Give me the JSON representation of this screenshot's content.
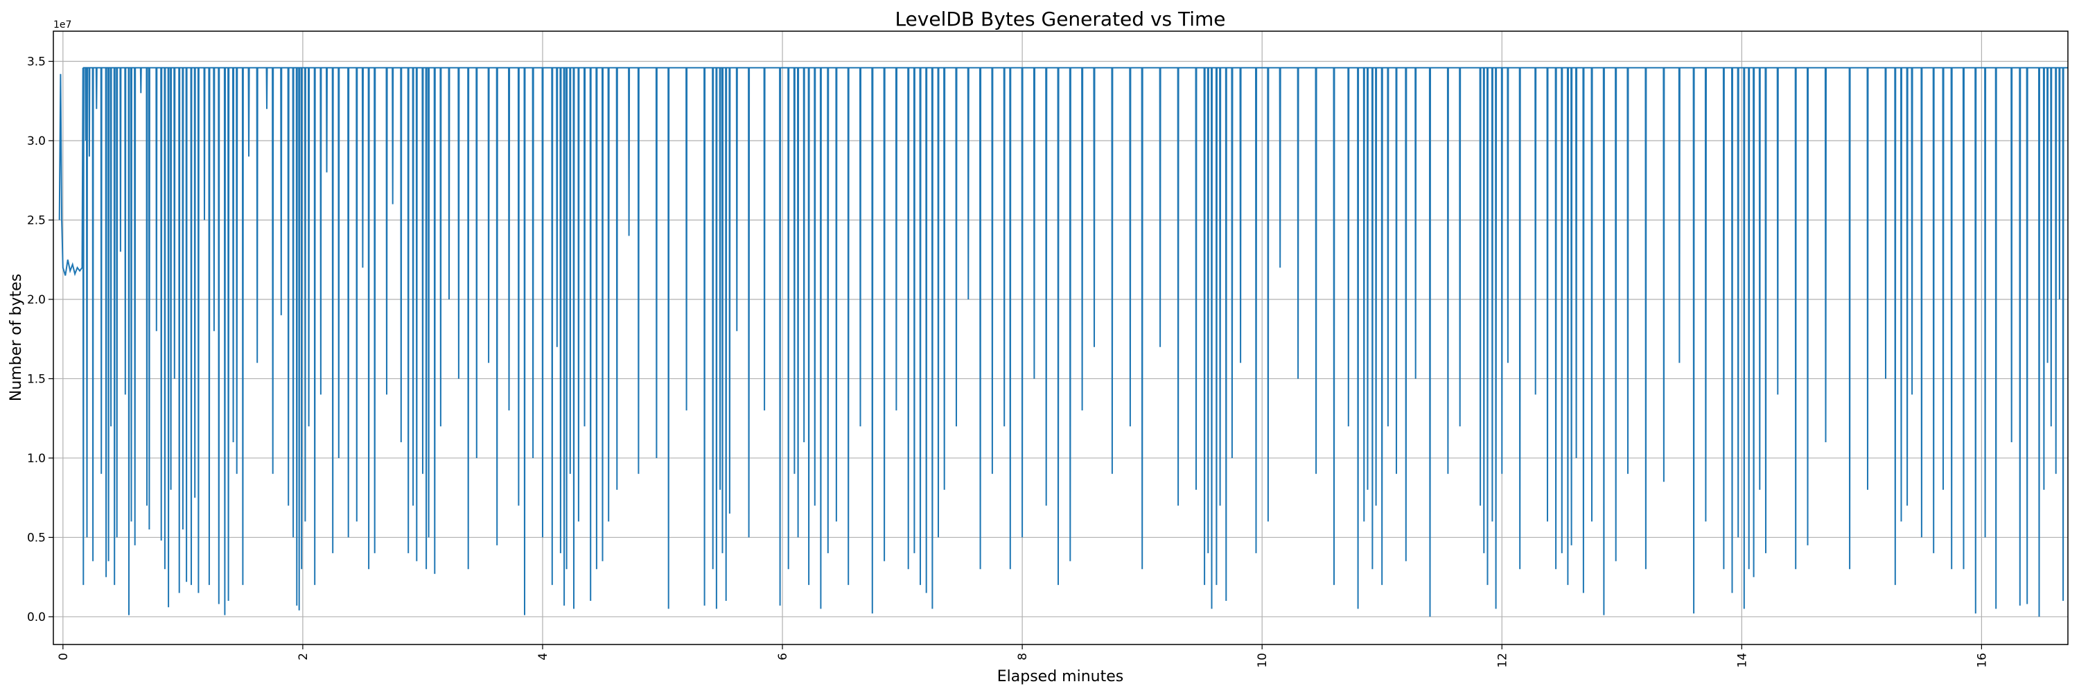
{
  "chart_data": {
    "type": "line",
    "title": "LevelDB Bytes Generated vs Time",
    "xlabel": "Elapsed minutes",
    "ylabel": "Number of bytes",
    "y_offset_text": "1e7",
    "y_unit_multiplier": 10000000,
    "xlim": [
      -0.08,
      16.72
    ],
    "ylim": [
      -0.175,
      3.69
    ],
    "xticks": [
      0,
      2,
      4,
      6,
      8,
      10,
      12,
      14,
      16
    ],
    "xtick_labels": [
      "0",
      "2",
      "4",
      "6",
      "8",
      "10",
      "12",
      "14",
      "16"
    ],
    "yticks": [
      0,
      0.5,
      1.0,
      1.5,
      2.0,
      2.5,
      3.0,
      3.5
    ],
    "ytick_labels": [
      "0.0",
      "0.5",
      "1.0",
      "1.5",
      "2.0",
      "2.5",
      "3.0",
      "3.5"
    ],
    "grid": true,
    "color": "#1f77b4",
    "series": [
      {
        "name": "bytes",
        "baseline": 3.46,
        "start_points": [
          [
            -0.03,
            2.5
          ],
          [
            -0.02,
            3.42
          ],
          [
            -0.01,
            2.5
          ],
          [
            0.0,
            2.2
          ],
          [
            0.02,
            2.15
          ],
          [
            0.04,
            2.25
          ],
          [
            0.06,
            2.18
          ],
          [
            0.08,
            2.22
          ],
          [
            0.1,
            2.16
          ],
          [
            0.12,
            2.2
          ],
          [
            0.14,
            2.18
          ],
          [
            0.16,
            2.2
          ]
        ],
        "dips": [
          [
            0.17,
            0.2
          ],
          [
            0.19,
            3.0
          ],
          [
            0.2,
            0.5
          ],
          [
            0.22,
            2.9
          ],
          [
            0.25,
            0.35
          ],
          [
            0.28,
            3.2
          ],
          [
            0.32,
            0.9
          ],
          [
            0.36,
            0.25
          ],
          [
            0.38,
            0.35
          ],
          [
            0.4,
            1.2
          ],
          [
            0.43,
            0.2
          ],
          [
            0.45,
            0.5
          ],
          [
            0.48,
            2.3
          ],
          [
            0.52,
            1.4
          ],
          [
            0.55,
            0.01
          ],
          [
            0.57,
            0.6
          ],
          [
            0.6,
            0.45
          ],
          [
            0.65,
            3.3
          ],
          [
            0.7,
            0.7
          ],
          [
            0.72,
            0.55
          ],
          [
            0.78,
            1.8
          ],
          [
            0.82,
            0.48
          ],
          [
            0.85,
            0.3
          ],
          [
            0.88,
            0.06
          ],
          [
            0.9,
            0.8
          ],
          [
            0.93,
            1.5
          ],
          [
            0.97,
            0.15
          ],
          [
            1.0,
            0.55
          ],
          [
            1.03,
            0.22
          ],
          [
            1.07,
            0.2
          ],
          [
            1.1,
            0.75
          ],
          [
            1.13,
            0.15
          ],
          [
            1.18,
            2.5
          ],
          [
            1.22,
            0.2
          ],
          [
            1.26,
            1.8
          ],
          [
            1.3,
            0.08
          ],
          [
            1.35,
            0.01
          ],
          [
            1.38,
            0.1
          ],
          [
            1.42,
            1.1
          ],
          [
            1.45,
            0.9
          ],
          [
            1.5,
            0.2
          ],
          [
            1.55,
            2.9
          ],
          [
            1.62,
            1.6
          ],
          [
            1.7,
            3.2
          ],
          [
            1.75,
            0.9
          ],
          [
            1.82,
            1.9
          ],
          [
            1.88,
            0.7
          ],
          [
            1.92,
            0.5
          ],
          [
            1.95,
            0.07
          ],
          [
            1.97,
            0.04
          ],
          [
            1.99,
            0.3
          ],
          [
            2.02,
            0.6
          ],
          [
            2.05,
            1.2
          ],
          [
            2.1,
            0.2
          ],
          [
            2.15,
            1.4
          ],
          [
            2.2,
            2.8
          ],
          [
            2.25,
            0.4
          ],
          [
            2.3,
            1.0
          ],
          [
            2.38,
            0.5
          ],
          [
            2.45,
            0.6
          ],
          [
            2.5,
            2.2
          ],
          [
            2.55,
            0.3
          ],
          [
            2.6,
            0.4
          ],
          [
            2.7,
            1.4
          ],
          [
            2.75,
            2.6
          ],
          [
            2.82,
            1.1
          ],
          [
            2.88,
            0.4
          ],
          [
            2.92,
            0.7
          ],
          [
            2.95,
            0.35
          ],
          [
            3.0,
            0.9
          ],
          [
            3.03,
            0.3
          ],
          [
            3.05,
            0.5
          ],
          [
            3.1,
            0.27
          ],
          [
            3.15,
            1.2
          ],
          [
            3.22,
            2.0
          ],
          [
            3.3,
            1.5
          ],
          [
            3.38,
            0.3
          ],
          [
            3.45,
            1.0
          ],
          [
            3.55,
            1.6
          ],
          [
            3.62,
            0.45
          ],
          [
            3.72,
            1.3
          ],
          [
            3.8,
            0.7
          ],
          [
            3.85,
            0.01
          ],
          [
            3.92,
            1.0
          ],
          [
            4.0,
            0.5
          ],
          [
            4.08,
            0.2
          ],
          [
            4.12,
            1.7
          ],
          [
            4.15,
            0.4
          ],
          [
            4.18,
            0.07
          ],
          [
            4.2,
            0.3
          ],
          [
            4.23,
            0.9
          ],
          [
            4.26,
            0.05
          ],
          [
            4.3,
            0.6
          ],
          [
            4.35,
            1.2
          ],
          [
            4.4,
            0.1
          ],
          [
            4.45,
            0.3
          ],
          [
            4.5,
            0.35
          ],
          [
            4.55,
            0.6
          ],
          [
            4.62,
            0.8
          ],
          [
            4.72,
            2.4
          ],
          [
            4.8,
            0.9
          ],
          [
            4.95,
            1.0
          ],
          [
            5.05,
            0.05
          ],
          [
            5.2,
            1.3
          ],
          [
            5.35,
            0.07
          ],
          [
            5.42,
            0.3
          ],
          [
            5.45,
            0.05
          ],
          [
            5.48,
            0.8
          ],
          [
            5.5,
            0.4
          ],
          [
            5.53,
            0.1
          ],
          [
            5.56,
            0.65
          ],
          [
            5.62,
            1.8
          ],
          [
            5.72,
            0.5
          ],
          [
            5.85,
            1.3
          ],
          [
            5.98,
            0.07
          ],
          [
            6.05,
            0.3
          ],
          [
            6.1,
            0.9
          ],
          [
            6.13,
            0.5
          ],
          [
            6.18,
            1.1
          ],
          [
            6.22,
            0.2
          ],
          [
            6.27,
            0.7
          ],
          [
            6.32,
            0.05
          ],
          [
            6.38,
            0.4
          ],
          [
            6.45,
            0.6
          ],
          [
            6.55,
            0.2
          ],
          [
            6.65,
            1.2
          ],
          [
            6.75,
            0.02
          ],
          [
            6.85,
            0.35
          ],
          [
            6.95,
            1.3
          ],
          [
            7.05,
            0.3
          ],
          [
            7.1,
            0.4
          ],
          [
            7.15,
            0.2
          ],
          [
            7.2,
            0.15
          ],
          [
            7.25,
            0.05
          ],
          [
            7.3,
            0.5
          ],
          [
            7.35,
            0.8
          ],
          [
            7.45,
            1.2
          ],
          [
            7.55,
            2.0
          ],
          [
            7.65,
            0.3
          ],
          [
            7.75,
            0.9
          ],
          [
            7.85,
            1.2
          ],
          [
            7.9,
            0.3
          ],
          [
            8.0,
            0.5
          ],
          [
            8.1,
            1.5
          ],
          [
            8.2,
            0.7
          ],
          [
            8.3,
            0.2
          ],
          [
            8.4,
            0.35
          ],
          [
            8.5,
            1.3
          ],
          [
            8.6,
            1.7
          ],
          [
            8.75,
            0.9
          ],
          [
            8.9,
            1.2
          ],
          [
            9.0,
            0.3
          ],
          [
            9.15,
            1.7
          ],
          [
            9.3,
            0.7
          ],
          [
            9.45,
            0.8
          ],
          [
            9.52,
            0.2
          ],
          [
            9.55,
            0.4
          ],
          [
            9.58,
            0.05
          ],
          [
            9.62,
            0.2
          ],
          [
            9.65,
            0.7
          ],
          [
            9.7,
            0.1
          ],
          [
            9.75,
            1.0
          ],
          [
            9.82,
            1.6
          ],
          [
            9.95,
            0.4
          ],
          [
            10.05,
            0.6
          ],
          [
            10.15,
            2.2
          ],
          [
            10.3,
            1.5
          ],
          [
            10.45,
            0.9
          ],
          [
            10.6,
            0.2
          ],
          [
            10.72,
            1.2
          ],
          [
            10.8,
            0.05
          ],
          [
            10.85,
            0.6
          ],
          [
            10.88,
            0.8
          ],
          [
            10.92,
            0.3
          ],
          [
            10.95,
            0.7
          ],
          [
            11.0,
            0.2
          ],
          [
            11.05,
            1.2
          ],
          [
            11.12,
            0.9
          ],
          [
            11.2,
            0.35
          ],
          [
            11.28,
            1.5
          ],
          [
            11.4,
            0.0
          ],
          [
            11.55,
            0.9
          ],
          [
            11.65,
            1.2
          ],
          [
            11.82,
            0.7
          ],
          [
            11.85,
            0.4
          ],
          [
            11.88,
            0.2
          ],
          [
            11.92,
            0.6
          ],
          [
            11.95,
            0.05
          ],
          [
            12.0,
            0.9
          ],
          [
            12.05,
            1.6
          ],
          [
            12.15,
            0.3
          ],
          [
            12.28,
            1.4
          ],
          [
            12.38,
            0.6
          ],
          [
            12.45,
            0.3
          ],
          [
            12.5,
            0.4
          ],
          [
            12.55,
            0.2
          ],
          [
            12.58,
            0.45
          ],
          [
            12.62,
            1.0
          ],
          [
            12.68,
            0.15
          ],
          [
            12.75,
            0.6
          ],
          [
            12.85,
            0.01
          ],
          [
            12.95,
            0.35
          ],
          [
            13.05,
            0.9
          ],
          [
            13.2,
            0.3
          ],
          [
            13.35,
            0.85
          ],
          [
            13.48,
            1.6
          ],
          [
            13.6,
            0.02
          ],
          [
            13.7,
            0.6
          ],
          [
            13.85,
            0.3
          ],
          [
            13.92,
            0.15
          ],
          [
            13.97,
            0.5
          ],
          [
            14.02,
            0.05
          ],
          [
            14.06,
            0.3
          ],
          [
            14.1,
            0.25
          ],
          [
            14.15,
            0.8
          ],
          [
            14.2,
            0.4
          ],
          [
            14.3,
            1.4
          ],
          [
            14.45,
            0.3
          ],
          [
            14.55,
            0.45
          ],
          [
            14.7,
            1.1
          ],
          [
            14.9,
            0.3
          ],
          [
            15.05,
            0.8
          ],
          [
            15.2,
            1.5
          ],
          [
            15.28,
            0.2
          ],
          [
            15.33,
            0.6
          ],
          [
            15.38,
            0.7
          ],
          [
            15.42,
            1.4
          ],
          [
            15.5,
            0.5
          ],
          [
            15.6,
            0.4
          ],
          [
            15.68,
            0.8
          ],
          [
            15.75,
            0.3
          ],
          [
            15.85,
            0.3
          ],
          [
            15.95,
            0.02
          ],
          [
            16.03,
            0.5
          ],
          [
            16.12,
            0.05
          ],
          [
            16.25,
            1.1
          ],
          [
            16.32,
            0.07
          ],
          [
            16.38,
            0.08
          ],
          [
            16.48,
            0.0
          ],
          [
            16.52,
            0.8
          ],
          [
            16.55,
            1.6
          ],
          [
            16.58,
            1.2
          ],
          [
            16.62,
            0.9
          ],
          [
            16.65,
            2.0
          ],
          [
            16.68,
            0.1
          ]
        ]
      }
    ]
  }
}
